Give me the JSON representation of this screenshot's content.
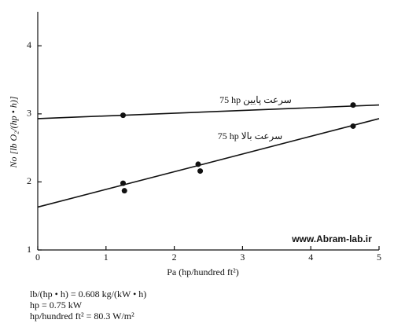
{
  "chart_data": {
    "type": "scatter",
    "ylabel": "No [lb O₂/(hp • h)]",
    "xlabel": "Pa (hp/hundred ft²)",
    "xlim": [
      0,
      5
    ],
    "xticks": [
      0,
      1,
      2,
      3,
      4,
      5
    ],
    "ylim": [
      1,
      4.5
    ],
    "yticks": [
      1,
      2,
      3,
      4
    ],
    "color": "#111111",
    "series": [
      {
        "name": "75 hp  سرعت پایین",
        "x": [
          1.25,
          4.62
        ],
        "values": [
          2.98,
          3.13
        ],
        "fit": {
          "x": [
            0,
            5
          ],
          "values": [
            2.93,
            3.13
          ]
        }
      },
      {
        "name": "75 hp  سرعت بالا",
        "x": [
          1.25,
          1.27,
          2.35,
          2.38,
          4.62
        ],
        "values": [
          1.98,
          1.87,
          2.26,
          2.16,
          2.82
        ],
        "fit": {
          "x": [
            0,
            5
          ],
          "values": [
            1.63,
            2.93
          ]
        }
      }
    ],
    "watermark": "www.Abram-lab.ir",
    "notes": [
      "lb/(hp • h) = 0.608 kg/(kW • h)",
      "hp = 0.75 kW",
      "hp/hundred ft² = 80.3 W/m²"
    ]
  }
}
